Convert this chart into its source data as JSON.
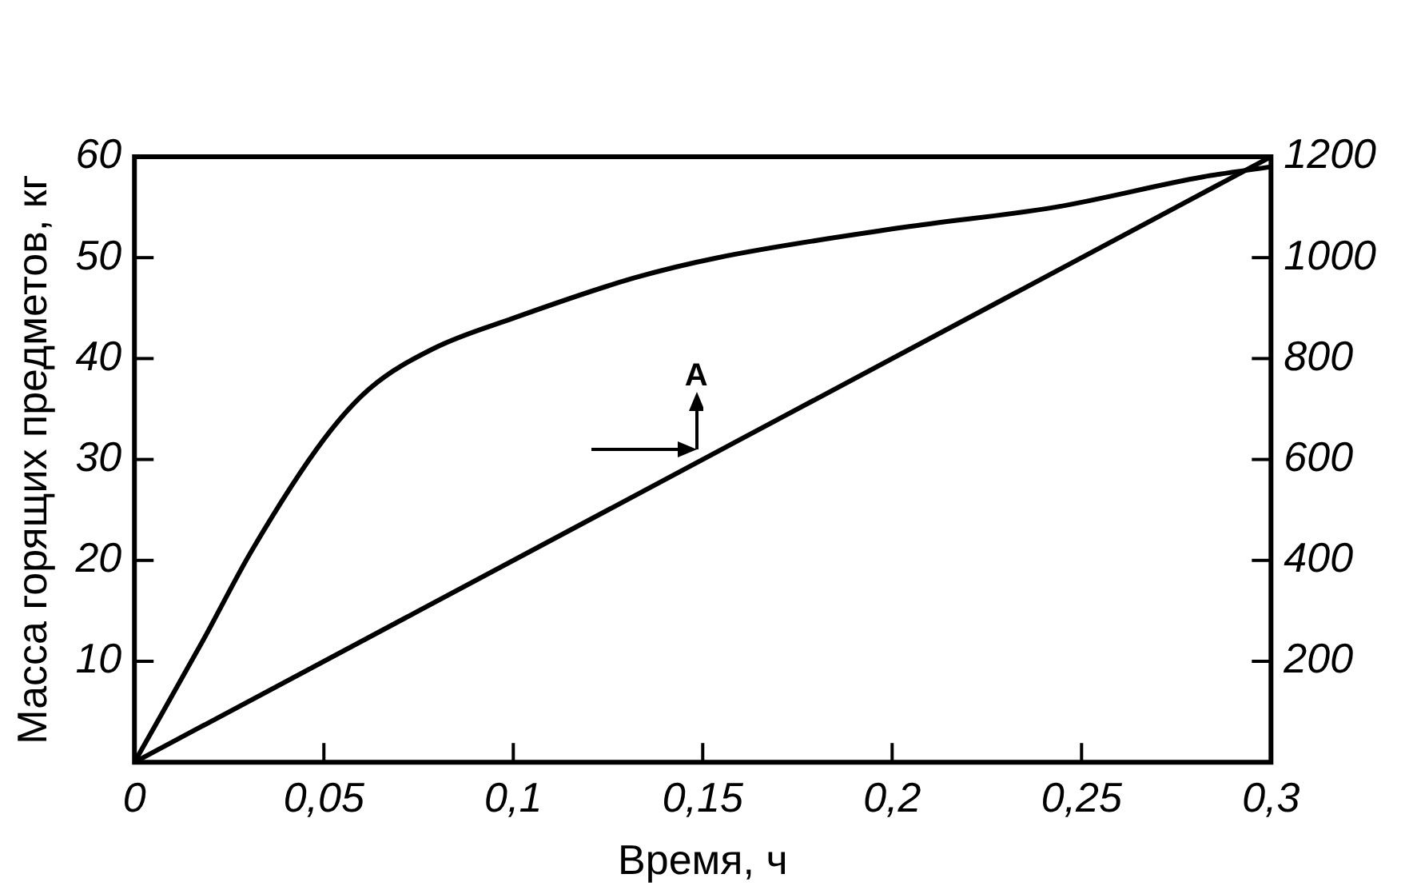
{
  "chart_data": {
    "type": "line",
    "xlabel": "Время, ч",
    "ylabel": "Масса горящих предметов, кг",
    "xlim": [
      0,
      0.3
    ],
    "xticks": [
      0,
      {
        "value": 0.05,
        "label": "0,05"
      },
      {
        "value": 0.1,
        "label": "0,1"
      },
      {
        "value": 0.15,
        "label": "0,15"
      },
      {
        "value": 0.2,
        "label": "0,2"
      },
      {
        "value": 0.25,
        "label": "0,25"
      },
      {
        "value": 0.3,
        "label": "0,3"
      }
    ],
    "ylim": [
      0,
      60
    ],
    "yticks": [
      10,
      20,
      30,
      40,
      50,
      60
    ],
    "y2lim": [
      0,
      1200
    ],
    "y2ticks": [
      200,
      400,
      600,
      800,
      1000,
      1200
    ],
    "series": [
      {
        "color": "#000000",
        "x": [
          0,
          0.018,
          0.031,
          0.05,
          0.062,
          0.079,
          0.1,
          0.132,
          0.154,
          0.203,
          0.243,
          0.282,
          0.3
        ],
        "values": [
          0,
          12,
          21,
          32,
          37,
          41,
          44,
          48,
          50,
          53,
          55,
          58,
          59
        ]
      },
      {
        "color": "#000000",
        "axis": "y2",
        "x": [
          0,
          0.3
        ],
        "values": [
          0,
          1200
        ]
      }
    ],
    "annotations": [
      {
        "text": "А",
        "x": 0.15,
        "y": 30
      }
    ],
    "grid": false,
    "legend": false,
    "marker": "none",
    "line_style": "solid"
  }
}
